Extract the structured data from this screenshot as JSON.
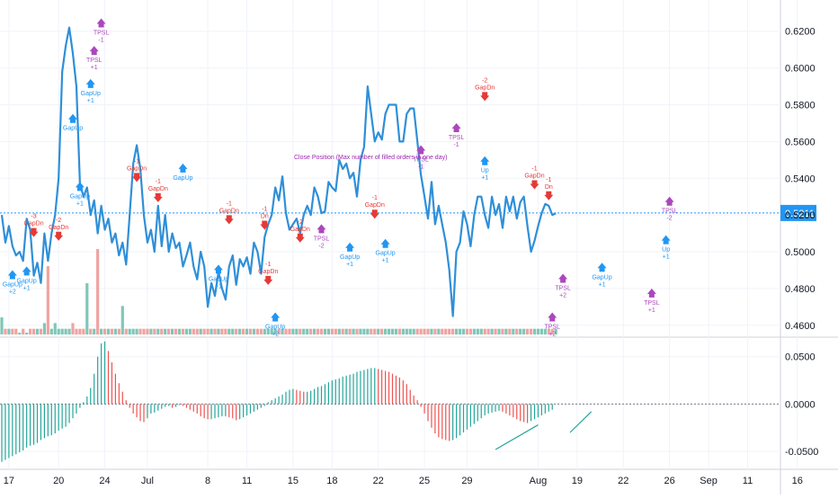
{
  "chart_data": [
    {
      "type": "line",
      "panel": "price",
      "series_color": "#2f8fd8",
      "ylim": [
        0.455,
        0.637
      ],
      "y_ticks": [
        "0.6200",
        "0.6000",
        "0.5800",
        "0.5600",
        "0.5400",
        "0.5200",
        "0.5000",
        "0.4800",
        "0.4600"
      ],
      "y_tick_values": [
        0.62,
        0.6,
        0.58,
        0.56,
        0.54,
        0.52,
        0.5,
        0.48,
        0.46
      ],
      "last_price": {
        "label": "0.5211",
        "value": 0.5211,
        "color": "#2196f3"
      },
      "series": [
        {
          "values": [
            0.52,
            0.505,
            0.514,
            0.503,
            0.498,
            0.5,
            0.495,
            0.518,
            0.512,
            0.487,
            0.494,
            0.483,
            0.51,
            0.495,
            0.51,
            0.52,
            0.54,
            0.598,
            0.612,
            0.622,
            0.608,
            0.59,
            0.537,
            0.53,
            0.535,
            0.52,
            0.528,
            0.51,
            0.525,
            0.512,
            0.518,
            0.505,
            0.51,
            0.498,
            0.505,
            0.493,
            0.52,
            0.548,
            0.558,
            0.545,
            0.52,
            0.505,
            0.512,
            0.5,
            0.525,
            0.503,
            0.52,
            0.5,
            0.51,
            0.502,
            0.505,
            0.492,
            0.498,
            0.505,
            0.492,
            0.485,
            0.5,
            0.492,
            0.47,
            0.483,
            0.476,
            0.489,
            0.48,
            0.474,
            0.492,
            0.498,
            0.482,
            0.496,
            0.492,
            0.497,
            0.488,
            0.505,
            0.5,
            0.488,
            0.508,
            0.515,
            0.52,
            0.535,
            0.528,
            0.541,
            0.521,
            0.512,
            0.515,
            0.518,
            0.51,
            0.52,
            0.525,
            0.52,
            0.535,
            0.53,
            0.521,
            0.522,
            0.538,
            0.535,
            0.533,
            0.55,
            0.545,
            0.548,
            0.54,
            0.543,
            0.53,
            0.55,
            0.557,
            0.59,
            0.575,
            0.56,
            0.565,
            0.561,
            0.575,
            0.58,
            0.58,
            0.58,
            0.56,
            0.56,
            0.575,
            0.578,
            0.578,
            0.56,
            0.542,
            0.53,
            0.518,
            0.538,
            0.515,
            0.525,
            0.515,
            0.505,
            0.49,
            0.465,
            0.5,
            0.505,
            0.522,
            0.515,
            0.503,
            0.52,
            0.53,
            0.53,
            0.52,
            0.513,
            0.53,
            0.52,
            0.526,
            0.513,
            0.53,
            0.522,
            0.53,
            0.518,
            0.527,
            0.53,
            0.514,
            0.5,
            0.506,
            0.514,
            0.521,
            0.526,
            0.525,
            0.52,
            0.521
          ]
        }
      ],
      "volume": [
        3,
        1,
        1,
        1,
        1,
        0,
        1,
        0,
        1,
        1,
        1,
        1,
        2,
        12,
        1,
        2,
        1,
        1,
        1,
        1,
        2,
        1,
        1,
        1,
        9,
        1,
        1,
        15,
        1,
        1,
        1,
        1,
        1,
        1,
        5,
        1,
        1,
        1,
        1,
        1,
        1,
        1,
        1,
        1,
        1,
        1,
        1,
        1,
        1,
        1,
        1,
        1,
        1,
        1,
        1,
        1,
        1,
        1,
        1,
        1,
        1,
        1,
        1,
        1,
        1,
        1,
        1,
        1,
        1,
        1,
        1,
        1,
        1,
        1,
        1,
        1,
        1,
        1,
        1,
        1,
        1,
        1,
        1,
        1,
        1,
        1,
        1,
        1,
        1,
        1,
        1,
        1,
        1,
        1,
        1,
        1,
        1,
        1,
        1,
        1,
        1,
        1,
        1,
        1,
        1,
        1,
        1,
        1,
        1,
        1,
        1,
        1,
        1,
        1,
        1,
        1,
        1,
        1,
        1,
        1,
        1,
        1,
        1,
        1,
        1,
        1,
        1,
        1,
        1,
        1,
        1,
        1,
        1,
        1,
        1,
        1,
        1,
        1,
        1,
        1,
        1,
        1,
        1,
        1,
        1,
        1,
        1,
        1,
        1,
        1,
        1,
        1,
        1,
        1,
        1,
        1,
        1
      ],
      "annotations": [
        {
          "text": "Close Position (Max number of filled orders in one day)",
          "x": 98,
          "y": 0.548,
          "color": "#9c27b0"
        }
      ]
    },
    {
      "type": "bar",
      "panel": "oscillator",
      "ylim": [
        -0.067,
        0.063
      ],
      "y_ticks": [
        "0.0500",
        "0.0000",
        "-0.0500"
      ],
      "y_tick_values": [
        0.05,
        0.0,
        -0.05
      ],
      "zero_color": "#787b86",
      "up_color": "#26a69a",
      "down_color": "#ef5350",
      "values": [
        -0.061,
        -0.059,
        -0.057,
        -0.055,
        -0.053,
        -0.051,
        -0.049,
        -0.046,
        -0.044,
        -0.043,
        -0.041,
        -0.038,
        -0.036,
        -0.034,
        -0.033,
        -0.031,
        -0.028,
        -0.026,
        -0.024,
        -0.02,
        -0.015,
        -0.01,
        -0.004,
        0.002,
        0.008,
        0.017,
        0.032,
        0.05,
        0.064,
        0.066,
        0.056,
        0.044,
        0.032,
        0.022,
        0.013,
        0.004,
        -0.004,
        -0.01,
        -0.014,
        -0.018,
        -0.019,
        -0.015,
        -0.01,
        -0.009,
        -0.007,
        -0.005,
        -0.003,
        -0.002,
        -0.004,
        -0.003,
        -0.001,
        -0.002,
        -0.004,
        -0.006,
        -0.008,
        -0.01,
        -0.013,
        -0.015,
        -0.016,
        -0.016,
        -0.015,
        -0.014,
        -0.013,
        -0.013,
        -0.014,
        -0.015,
        -0.017,
        -0.016,
        -0.014,
        -0.012,
        -0.01,
        -0.008,
        -0.006,
        -0.004,
        -0.002,
        0.002,
        0.004,
        0.006,
        0.008,
        0.01,
        0.013,
        0.015,
        0.016,
        0.015,
        0.014,
        0.013,
        0.013,
        0.014,
        0.016,
        0.018,
        0.019,
        0.021,
        0.023,
        0.025,
        0.026,
        0.027,
        0.029,
        0.03,
        0.031,
        0.032,
        0.034,
        0.035,
        0.036,
        0.037,
        0.038,
        0.038,
        0.037,
        0.036,
        0.035,
        0.034,
        0.032,
        0.03,
        0.028,
        0.025,
        0.021,
        0.015,
        0.009,
        0.004,
        -0.003,
        -0.01,
        -0.018,
        -0.025,
        -0.031,
        -0.035,
        -0.037,
        -0.038,
        -0.039,
        -0.038,
        -0.036,
        -0.033,
        -0.03,
        -0.027,
        -0.024,
        -0.021,
        -0.018,
        -0.015,
        -0.012,
        -0.01,
        -0.009,
        -0.008,
        -0.007,
        -0.008,
        -0.01,
        -0.012,
        -0.014,
        -0.016,
        -0.018,
        -0.019,
        -0.02,
        -0.018,
        -0.016,
        -0.014,
        -0.012,
        -0.01,
        -0.008,
        -0.006
      ],
      "trendlines": [
        {
          "from": [
            139,
            -0.048
          ],
          "to": [
            151,
            -0.022
          ],
          "color": "#26a69a"
        },
        {
          "from": [
            160,
            -0.03
          ],
          "to": [
            166,
            -0.008
          ],
          "color": "#26a69a"
        }
      ]
    }
  ],
  "x_axis": {
    "labels": [
      "17",
      "20",
      "24",
      "Jul",
      "8",
      "11",
      "15",
      "18",
      "22",
      "25",
      "29",
      "Aug",
      "19",
      "22",
      "26",
      "Sep",
      "11",
      "16"
    ],
    "positions": [
      2,
      16,
      29,
      41,
      58,
      69,
      82,
      93,
      106,
      119,
      131,
      151,
      162,
      175,
      188,
      199,
      210,
      224
    ]
  },
  "markers": [
    {
      "label": "GapUp",
      "dir": "up",
      "x": 22,
      "price": 0.538,
      "value": "+1"
    },
    {
      "label": "GapUp",
      "dir": "up",
      "x": 20,
      "price": 0.575,
      "value": ""
    },
    {
      "label": "GapUp",
      "dir": "up",
      "x": 25,
      "price": 0.594,
      "value": "+1"
    },
    {
      "label": "TPSL",
      "dir": "sl",
      "x": 26,
      "price": 0.612,
      "value": "+1"
    },
    {
      "label": "TPSL",
      "dir": "sl",
      "x": 28,
      "price": 0.627,
      "value": "-1"
    },
    {
      "label": "GapDn",
      "dir": "down",
      "x": 38,
      "price": 0.538,
      "value": "-1"
    },
    {
      "label": "GapDn",
      "dir": "down",
      "x": 44,
      "price": 0.527,
      "value": "-1"
    },
    {
      "label": "GapUp",
      "dir": "up",
      "x": 51,
      "price": 0.548,
      "value": ""
    },
    {
      "label": "GapDn",
      "dir": "down",
      "x": 64,
      "price": 0.515,
      "value": "-1"
    },
    {
      "label": "Dn",
      "dir": "down",
      "x": 74,
      "price": 0.512,
      "value": "-1"
    },
    {
      "label": "GapDn",
      "dir": "down",
      "x": 9,
      "price": 0.508,
      "value": "-3"
    },
    {
      "label": "GapUp",
      "dir": "up",
      "x": 7,
      "price": 0.492,
      "value": "+1"
    },
    {
      "label": "GapUp",
      "dir": "up",
      "x": 3,
      "price": 0.49,
      "value": "+2"
    },
    {
      "label": "GapDn",
      "dir": "down",
      "x": 16,
      "price": 0.506,
      "value": "-2"
    },
    {
      "label": "GapUp",
      "dir": "up",
      "x": 61,
      "price": 0.493,
      "value": "+1"
    },
    {
      "label": "GapDn",
      "dir": "down",
      "x": 75,
      "price": 0.482,
      "value": "-1"
    },
    {
      "label": "GapUp",
      "dir": "up",
      "x": 77,
      "price": 0.467,
      "value": "+2"
    },
    {
      "label": "GapDn",
      "dir": "down",
      "x": 84,
      "price": 0.505,
      "value": "-2"
    },
    {
      "label": "TPSL",
      "dir": "sl",
      "x": 90,
      "price": 0.515,
      "value": "-2"
    },
    {
      "label": "GapUp",
      "dir": "up",
      "x": 98,
      "price": 0.505,
      "value": "+1"
    },
    {
      "label": "GapDn",
      "dir": "down",
      "x": 105,
      "price": 0.518,
      "value": "-1"
    },
    {
      "label": "GapUp",
      "dir": "up",
      "x": 108,
      "price": 0.507,
      "value": "+1"
    },
    {
      "label": "TPSL",
      "dir": "sl",
      "x": 118,
      "price": 0.558,
      "value": "-1"
    },
    {
      "label": "TPSL",
      "dir": "sl",
      "x": 128,
      "price": 0.57,
      "value": "-1"
    },
    {
      "label": "GapDn",
      "dir": "down",
      "x": 136,
      "price": 0.582,
      "value": "-2"
    },
    {
      "label": "Up",
      "dir": "up",
      "x": 136,
      "price": 0.552,
      "value": "+1"
    },
    {
      "label": "GapDn",
      "dir": "down",
      "x": 150,
      "price": 0.534,
      "value": "-1"
    },
    {
      "label": "Dn",
      "dir": "down",
      "x": 154,
      "price": 0.528,
      "value": "-1"
    },
    {
      "label": "TPSL",
      "dir": "sl",
      "x": 155,
      "price": 0.467,
      "value": "+2"
    },
    {
      "label": "TPSL",
      "dir": "sl",
      "x": 158,
      "price": 0.488,
      "value": "+2"
    },
    {
      "label": "GapUp",
      "dir": "up",
      "x": 169,
      "price": 0.494,
      "value": "+1"
    },
    {
      "label": "TPSL",
      "dir": "sl",
      "x": 183,
      "price": 0.48,
      "value": "+1"
    },
    {
      "label": "TPSL",
      "dir": "sl",
      "x": 188,
      "price": 0.53,
      "value": "-2"
    },
    {
      "label": "Up",
      "dir": "up",
      "x": 187,
      "price": 0.509,
      "value": "+1"
    }
  ]
}
